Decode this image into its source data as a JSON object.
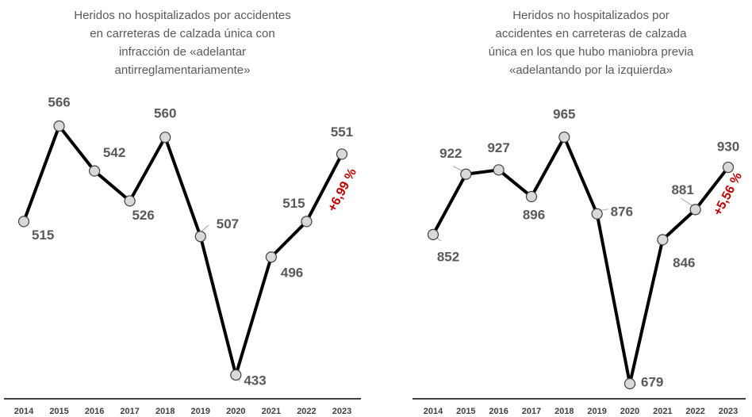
{
  "chart_data": [
    {
      "type": "line",
      "title": [
        "Heridos no hospitalizados por accidentes",
        "en carreteras de calzada única con",
        "infracción de «adelantar",
        "antirreglamentariamente»"
      ],
      "categories": [
        "2014",
        "2015",
        "2016",
        "2017",
        "2018",
        "2019",
        "2020",
        "2021",
        "2022",
        "2023"
      ],
      "values": [
        515,
        566,
        542,
        526,
        560,
        507,
        433,
        496,
        515,
        551
      ],
      "color": "#000000",
      "annotation": "+6,99 %"
    },
    {
      "type": "line",
      "title": [
        "Heridos no hospitalizados por",
        "accidentes en carreteras de calzada",
        "única en los que hubo maniobra previa",
        "«adelantando por la izquierda»"
      ],
      "categories": [
        "2014",
        "2015",
        "2016",
        "2017",
        "2018",
        "2019",
        "2020",
        "2021",
        "2022",
        "2023"
      ],
      "values": [
        852,
        922,
        927,
        896,
        965,
        876,
        679,
        846,
        881,
        930
      ],
      "color": "#000000",
      "annotation": "+5,56 %"
    }
  ]
}
